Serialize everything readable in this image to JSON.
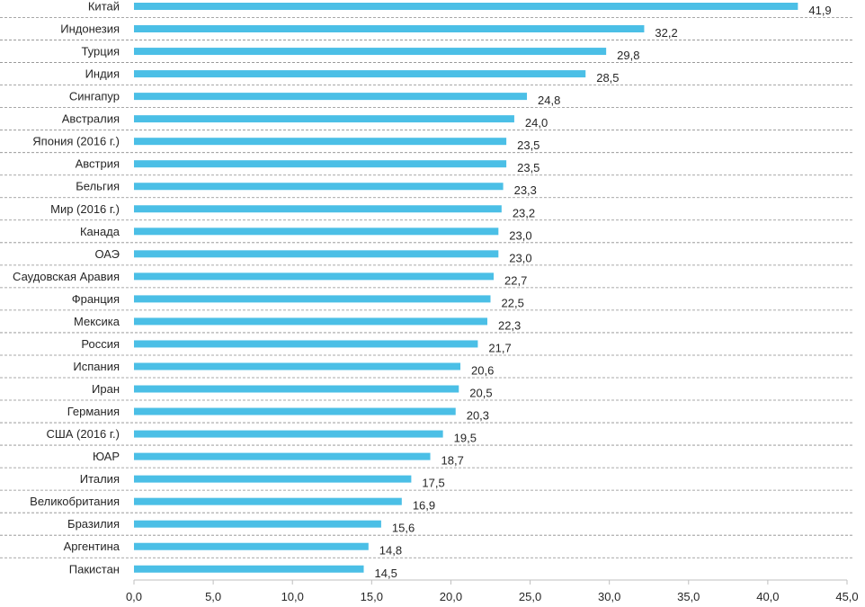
{
  "chart_data": {
    "type": "bar",
    "orientation": "horizontal",
    "title": "",
    "xlabel": "",
    "ylabel": "",
    "xlim": [
      0,
      45
    ],
    "x_ticks": [
      "0,0",
      "5,0",
      "10,0",
      "15,0",
      "20,0",
      "25,0",
      "30,0",
      "35,0",
      "40,0",
      "45,0"
    ],
    "categories": [
      "Китай",
      "Индонезия",
      "Турция",
      "Индия",
      "Сингапур",
      "Австралия",
      "Япония (2016 г.)",
      "Австрия",
      "Бельгия",
      "Мир (2016 г.)",
      "Канада",
      "ОАЭ",
      "Саудовская Аравия",
      "Франция",
      "Мексика",
      "Россия",
      "Испания",
      "Иран",
      "Германия",
      "США (2016 г.)",
      "ЮАР",
      "Италия",
      "Великобритания",
      "Бразилия",
      "Аргентина",
      "Пакистан"
    ],
    "values": [
      41.9,
      32.2,
      29.8,
      28.5,
      24.8,
      24.0,
      23.5,
      23.5,
      23.3,
      23.2,
      23.0,
      23.0,
      22.7,
      22.5,
      22.3,
      21.7,
      20.6,
      20.5,
      20.3,
      19.5,
      18.7,
      17.5,
      16.9,
      15.6,
      14.8,
      14.5
    ],
    "value_labels": [
      "41,9",
      "32,2",
      "29,8",
      "28,5",
      "24,8",
      "24,0",
      "23,5",
      "23,5",
      "23,3",
      "23,2",
      "23,0",
      "23,0",
      "22,7",
      "22,5",
      "22,3",
      "21,7",
      "20,6",
      "20,5",
      "20,3",
      "19,5",
      "18,7",
      "17,5",
      "16,9",
      "15,6",
      "14,8",
      "14,5"
    ],
    "bar_color": "#4BBFE6",
    "separator_color": "#8C8C8C",
    "axis_color": "#BFBFBF"
  }
}
